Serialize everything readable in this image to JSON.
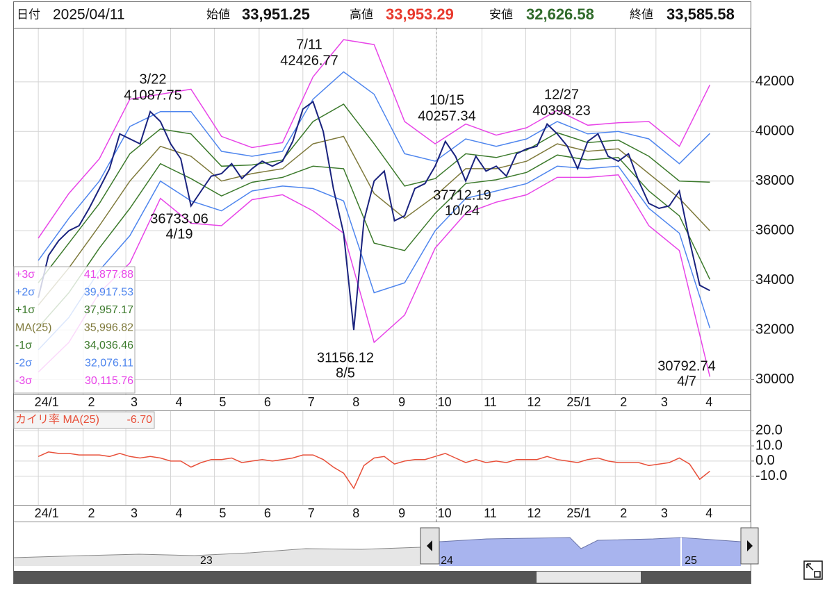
{
  "header": {
    "date_label": "日付",
    "date": "2025/04/11",
    "open_label": "始値",
    "open": "33,951.25",
    "high_label": "高値",
    "high": "33,953.29",
    "low_label": "安値",
    "low": "32,626.58",
    "close_label": "終値",
    "close": "33,585.58"
  },
  "chart_data": [
    {
      "type": "line",
      "color": "#1a237e",
      "x": [
        0,
        1,
        2,
        3,
        4,
        5,
        6,
        7,
        8,
        9,
        10,
        11,
        12,
        13,
        14,
        15,
        16,
        17,
        18,
        19,
        20,
        21,
        22,
        23,
        24,
        25,
        26,
        27,
        28,
        29,
        30,
        31,
        32,
        33,
        34,
        35,
        36,
        37,
        38,
        39,
        40,
        41,
        42,
        43,
        44,
        45,
        46,
        47,
        48,
        49,
        50,
        51,
        52,
        53,
        54,
        55,
        56,
        57,
        58,
        59,
        60,
        61,
        62,
        63,
        64,
        65,
        66
      ],
      "values": [
        33300,
        35000,
        35600,
        36000,
        36200,
        36900,
        37700,
        38500,
        39900,
        39700,
        39500,
        40800,
        40400,
        39500,
        38900,
        37000,
        37600,
        38200,
        38300,
        38700,
        38100,
        38500,
        38800,
        38600,
        38800,
        39600,
        40900,
        41200,
        40000,
        37700,
        35900,
        32000,
        36400,
        38000,
        38400,
        36400,
        36600,
        37700,
        37900,
        38600,
        39600,
        39000,
        38000,
        39000,
        38400,
        38600,
        38200,
        39100,
        39300,
        39400,
        40300,
        39900,
        39400,
        38500,
        39600,
        39900,
        39000,
        38800,
        39100,
        38000,
        37100,
        36900,
        37000,
        37600,
        35600,
        33800,
        33586
      ],
      "series": [
        {
          "name": "+3σ",
          "legend_value": "41,877.88",
          "color": "#e845e8",
          "x": [
            0,
            3,
            6,
            9,
            12,
            15,
            18,
            21,
            24,
            27,
            30,
            33,
            36,
            39,
            42,
            45,
            48,
            51,
            54,
            57,
            60,
            63,
            66
          ],
          "values": [
            35700,
            37500,
            38900,
            41300,
            41500,
            41700,
            39800,
            39350,
            39550,
            42200,
            43700,
            43500,
            40400,
            39500,
            40300,
            39850,
            40150,
            40850,
            40250,
            40350,
            40400,
            39400,
            41877.88
          ]
        },
        {
          "name": "+2σ",
          "legend_value": "39,917.53",
          "color": "#4f86ee",
          "x": [
            0,
            3,
            6,
            9,
            12,
            15,
            18,
            21,
            24,
            27,
            30,
            33,
            36,
            39,
            42,
            45,
            48,
            51,
            54,
            57,
            60,
            63,
            66
          ],
          "values": [
            34800,
            36500,
            38000,
            40200,
            40800,
            40800,
            39200,
            39000,
            39200,
            41300,
            42400,
            41500,
            39100,
            38800,
            39700,
            39400,
            39700,
            40400,
            39900,
            40000,
            39700,
            38700,
            39917.53
          ]
        },
        {
          "name": "+1σ",
          "legend_value": "37,957.17",
          "color": "#3c7a2c",
          "x": [
            0,
            3,
            6,
            9,
            12,
            15,
            18,
            21,
            24,
            27,
            30,
            33,
            36,
            39,
            42,
            45,
            48,
            51,
            54,
            57,
            60,
            63,
            66
          ],
          "values": [
            33900,
            35500,
            37100,
            39100,
            40100,
            39900,
            38600,
            38650,
            38850,
            40400,
            41100,
            39500,
            37800,
            38100,
            39100,
            38950,
            39250,
            39950,
            39550,
            39650,
            39000,
            38000,
            37957.17
          ]
        },
        {
          "name": "MA(25)",
          "legend_value": "35,996.82",
          "color": "#7f7a3c",
          "x": [
            0,
            3,
            6,
            9,
            12,
            15,
            18,
            21,
            24,
            27,
            30,
            33,
            36,
            39,
            42,
            45,
            48,
            51,
            54,
            57,
            60,
            63,
            66
          ],
          "values": [
            33000,
            34500,
            36200,
            38000,
            39400,
            39000,
            38000,
            38300,
            38500,
            39500,
            39800,
            37500,
            36500,
            37400,
            38500,
            38500,
            38800,
            39500,
            39200,
            39300,
            38300,
            37300,
            35996.82
          ]
        },
        {
          "name": "-1σ",
          "legend_value": "34,036.46",
          "color": "#3c7a2c",
          "x": [
            0,
            3,
            6,
            9,
            12,
            15,
            18,
            21,
            24,
            27,
            30,
            33,
            36,
            39,
            42,
            45,
            48,
            51,
            54,
            57,
            60,
            63,
            66
          ],
          "values": [
            32100,
            33500,
            35300,
            36900,
            38700,
            38100,
            37400,
            37950,
            38150,
            38600,
            38500,
            35500,
            35200,
            36700,
            37900,
            38050,
            38350,
            39050,
            38850,
            38950,
            37600,
            36600,
            34036.46
          ]
        },
        {
          "name": "-2σ",
          "legend_value": "32,076.11",
          "color": "#4f86ee",
          "x": [
            0,
            3,
            6,
            9,
            12,
            15,
            18,
            21,
            24,
            27,
            30,
            33,
            36,
            39,
            42,
            45,
            48,
            51,
            54,
            57,
            60,
            63,
            66
          ],
          "values": [
            31200,
            32500,
            34400,
            35800,
            38000,
            37200,
            36800,
            37600,
            37800,
            37700,
            37200,
            33500,
            33900,
            36000,
            37300,
            37600,
            37900,
            38600,
            38500,
            38600,
            36900,
            35900,
            32076.11
          ]
        },
        {
          "name": "-3σ",
          "legend_value": "30,115.76",
          "color": "#e845e8",
          "x": [
            0,
            3,
            6,
            9,
            12,
            15,
            18,
            21,
            24,
            27,
            30,
            33,
            36,
            39,
            42,
            45,
            48,
            51,
            54,
            57,
            60,
            63,
            66
          ],
          "values": [
            30300,
            31500,
            33500,
            34700,
            37300,
            36300,
            36200,
            37250,
            37450,
            36800,
            35900,
            31500,
            32600,
            35300,
            36700,
            37150,
            37450,
            38150,
            38150,
            38250,
            36200,
            35200,
            30115.76
          ]
        }
      ],
      "annotations": [
        {
          "date": "3/22",
          "value": 41087.75
        },
        {
          "date": "7/11",
          "value": 42426.77
        },
        {
          "date": "10/15",
          "value": 40257.34
        },
        {
          "date": "12/27",
          "value": 40398.23
        },
        {
          "date": "4/19",
          "value": 36733.06
        },
        {
          "date": "8/5",
          "value": 31156.12
        },
        {
          "date": "10/24",
          "value": 37712.19
        },
        {
          "date": "4/7",
          "value": 30792.74
        }
      ],
      "xlim": [
        -2.4,
        70
      ],
      "xticks": [
        {
          "value": 0,
          "label": "24/1"
        },
        {
          "value": 4.4,
          "label": "2"
        },
        {
          "value": 8.6,
          "label": "3"
        },
        {
          "value": 13,
          "label": "4"
        },
        {
          "value": 17.3,
          "label": "5"
        },
        {
          "value": 21.7,
          "label": "6"
        },
        {
          "value": 26,
          "label": "7"
        },
        {
          "value": 30.4,
          "label": "8"
        },
        {
          "value": 34.9,
          "label": "9"
        },
        {
          "value": 39.1,
          "label": "10"
        },
        {
          "value": 43.6,
          "label": "11"
        },
        {
          "value": 47.9,
          "label": "12"
        },
        {
          "value": 52.3,
          "label": "25/1"
        },
        {
          "value": 56.7,
          "label": "2"
        },
        {
          "value": 60.7,
          "label": "3"
        },
        {
          "value": 65.1,
          "label": "4"
        }
      ],
      "ylim": [
        29400,
        44150
      ],
      "yticks": [
        30000,
        32000,
        34000,
        36000,
        38000,
        40000,
        42000
      ],
      "grid": true
    },
    {
      "type": "line",
      "title": "カイリ率 MA(25)",
      "legend_value": "-6.70",
      "color": "#e8503a",
      "x": [
        0,
        1,
        2,
        3,
        4,
        5,
        6,
        7,
        8,
        9,
        10,
        11,
        12,
        13,
        14,
        15,
        16,
        17,
        18,
        19,
        20,
        21,
        22,
        23,
        24,
        25,
        26,
        27,
        28,
        29,
        30,
        31,
        32,
        33,
        34,
        35,
        36,
        37,
        38,
        39,
        40,
        41,
        42,
        43,
        44,
        45,
        46,
        47,
        48,
        49,
        50,
        51,
        52,
        53,
        54,
        55,
        56,
        57,
        58,
        59,
        60,
        61,
        62,
        63,
        64,
        65,
        66
      ],
      "values": [
        3,
        6,
        5,
        5,
        4,
        4,
        4,
        3,
        5,
        3,
        2,
        3,
        2,
        0,
        0,
        -4,
        -1,
        1,
        1,
        2,
        -1,
        0,
        1,
        0,
        1,
        2,
        4,
        4,
        1,
        -4,
        -8,
        -18,
        -3,
        2,
        3,
        -2,
        0,
        1,
        1,
        3,
        5,
        2,
        -1,
        1,
        -1,
        0,
        -1,
        1,
        1,
        1,
        3,
        1,
        0,
        -1,
        1,
        2,
        0,
        -1,
        -1,
        -1,
        -3,
        -2,
        -1,
        2,
        -2,
        -12,
        -6.7
      ],
      "xlim": [
        -2.4,
        70
      ],
      "ylim": [
        -28.9,
        32.9
      ],
      "yticks": [
        {
          "value": 20,
          "label": "20.0"
        },
        {
          "value": 10,
          "label": "10.0"
        },
        {
          "value": 0,
          "label": "0.0"
        },
        {
          "value": -10,
          "label": "-10.0"
        }
      ],
      "grid": true
    }
  ],
  "navigator": {
    "labels": [
      "23",
      "24",
      "25"
    ]
  }
}
